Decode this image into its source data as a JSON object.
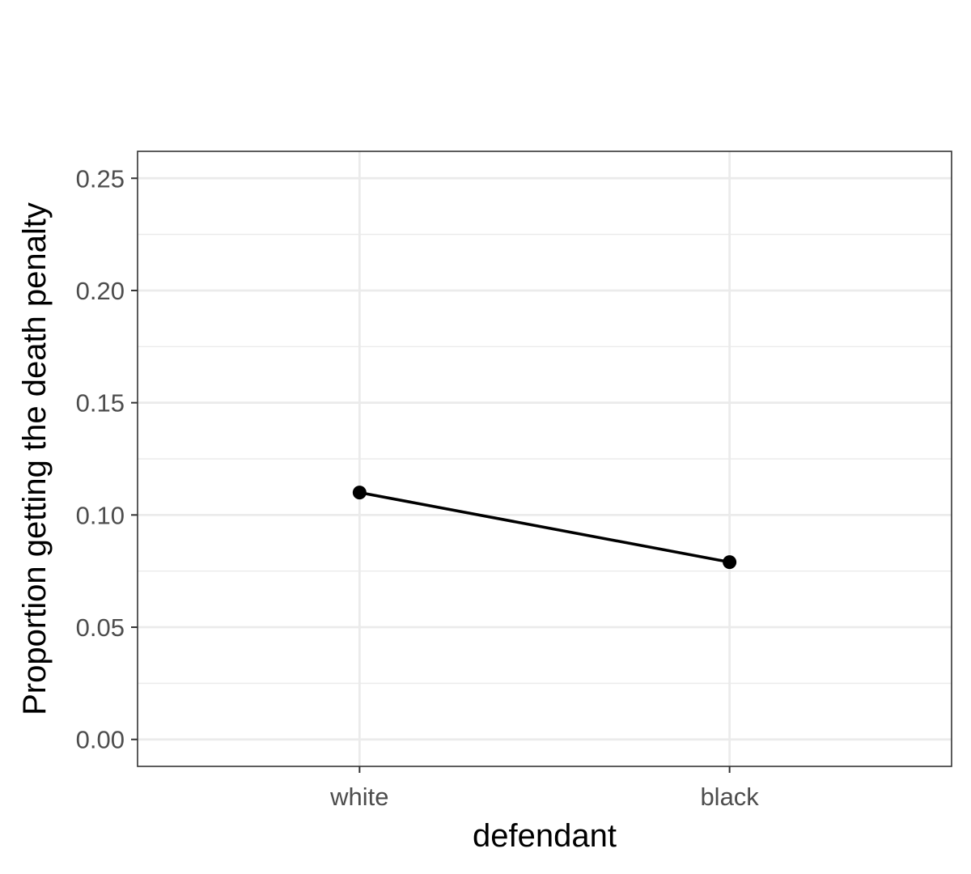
{
  "chart_data": {
    "type": "line",
    "categories": [
      "white",
      "black"
    ],
    "series": [
      {
        "values": [
          0.11,
          0.079
        ]
      }
    ],
    "xlabel": "defendant",
    "ylabel": "Proportion getting the death penalty",
    "ylim": [
      -0.012,
      0.262
    ],
    "yticks": [
      0.0,
      0.05,
      0.1,
      0.15,
      0.2,
      0.25
    ],
    "ytick_labels": [
      "0.00",
      "0.05",
      "0.10",
      "0.15",
      "0.20",
      "0.25"
    ],
    "grid": true,
    "legend": "none",
    "colors": {
      "line": "#000000",
      "point": "#000000",
      "grid": "#ebebeb",
      "panel_border": "#333333",
      "tick_label": "#4d4d4d"
    }
  }
}
